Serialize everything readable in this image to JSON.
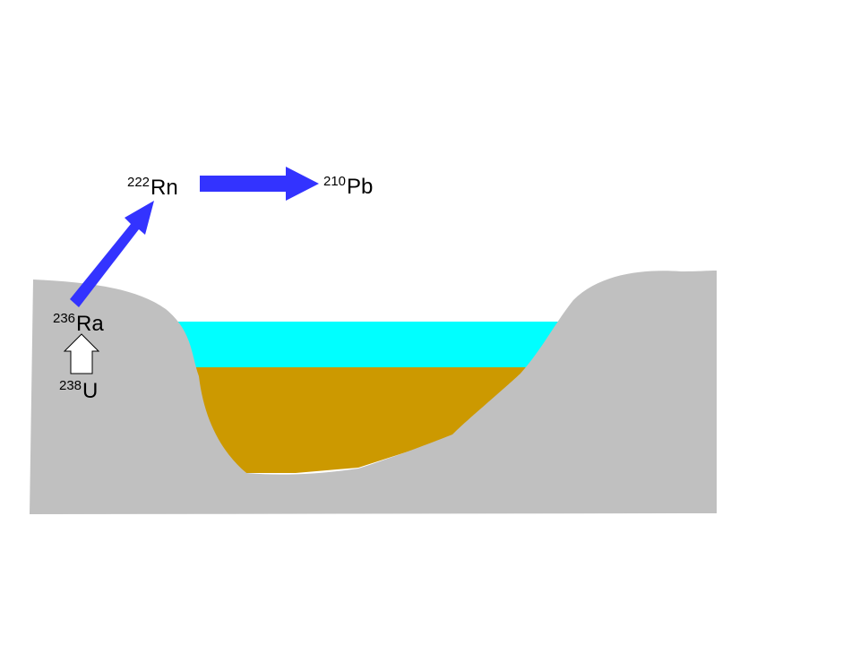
{
  "colors": {
    "rock": "#c0c0c0",
    "water": "#00ffff",
    "sediment": "#cc9900",
    "arrow_fill": "#3333ff",
    "outline_arrow": "#000000"
  },
  "isotopes": {
    "rn": {
      "mass": "222",
      "symbol": "Rn"
    },
    "pb": {
      "mass": "210",
      "symbol": "Pb"
    },
    "ra": {
      "mass": "236",
      "symbol": "Ra"
    },
    "u": {
      "mass": "238",
      "symbol": "U"
    }
  }
}
